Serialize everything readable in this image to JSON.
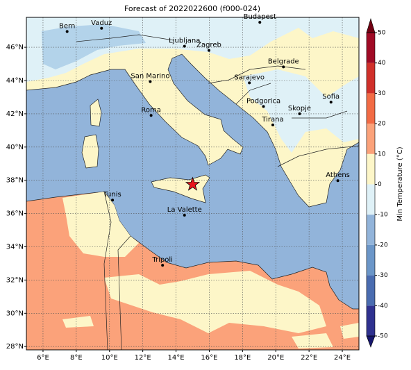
{
  "chart_data": {
    "type": "map",
    "title": "Forecast of 2022022600 (f000-024)",
    "xlim": [
      5,
      25
    ],
    "ylim": [
      27.8,
      47.8
    ],
    "xticks": [
      {
        "value": 6,
        "label": "6°E"
      },
      {
        "value": 8,
        "label": "8°E"
      },
      {
        "value": 10,
        "label": "10°E"
      },
      {
        "value": 12,
        "label": "12°E"
      },
      {
        "value": 14,
        "label": "14°E"
      },
      {
        "value": 16,
        "label": "16°E"
      },
      {
        "value": 18,
        "label": "18°E"
      },
      {
        "value": 20,
        "label": "20°E"
      },
      {
        "value": 22,
        "label": "22°E"
      },
      {
        "value": 24,
        "label": "24°E"
      }
    ],
    "yticks": [
      {
        "value": 28,
        "label": "28°N"
      },
      {
        "value": 30,
        "label": "30°N"
      },
      {
        "value": 32,
        "label": "32°N"
      },
      {
        "value": 34,
        "label": "34°N"
      },
      {
        "value": 36,
        "label": "36°N"
      },
      {
        "value": 38,
        "label": "38°N"
      },
      {
        "value": 40,
        "label": "40°N"
      },
      {
        "value": 42,
        "label": "42°N"
      },
      {
        "value": 44,
        "label": "44°N"
      },
      {
        "value": 46,
        "label": "46°N"
      }
    ],
    "grid": true,
    "cities": [
      {
        "name": "Bern",
        "lon": 7.45,
        "lat": 46.95
      },
      {
        "name": "Vaduz",
        "lon": 9.52,
        "lat": 47.14
      },
      {
        "name": "Budapest",
        "lon": 19.04,
        "lat": 47.5
      },
      {
        "name": "Ljubljana",
        "lon": 14.51,
        "lat": 46.06
      },
      {
        "name": "Zagreb",
        "lon": 15.98,
        "lat": 45.81
      },
      {
        "name": "Belgrade",
        "lon": 20.46,
        "lat": 44.82
      },
      {
        "name": "San Marino",
        "lon": 12.45,
        "lat": 43.94
      },
      {
        "name": "Sarajevo",
        "lon": 18.41,
        "lat": 43.86
      },
      {
        "name": "Sofia",
        "lon": 23.32,
        "lat": 42.7
      },
      {
        "name": "Podgorica",
        "lon": 19.26,
        "lat": 42.44
      },
      {
        "name": "Skopje",
        "lon": 21.43,
        "lat": 42.0
      },
      {
        "name": "Roma",
        "lon": 12.5,
        "lat": 41.9
      },
      {
        "name": "Tirana",
        "lon": 19.82,
        "lat": 41.33
      },
      {
        "name": "Athens",
        "lon": 23.73,
        "lat": 37.98
      },
      {
        "name": "Tunis",
        "lon": 10.18,
        "lat": 36.81
      },
      {
        "name": "La Valette",
        "lon": 14.51,
        "lat": 35.9
      },
      {
        "name": "Tripoli",
        "lon": 13.19,
        "lat": 32.89
      }
    ],
    "marker": {
      "lon": 15.0,
      "lat": 37.75,
      "color": "#e8141c"
    },
    "colorbar": {
      "label": "Min Temperature (°C)",
      "lim": [
        -50,
        50
      ],
      "ticks": [
        -50,
        -40,
        -30,
        -20,
        -10,
        0,
        10,
        20,
        30,
        40,
        50
      ],
      "colors": [
        "#2f318f",
        "#4a6cb0",
        "#6b96c8",
        "#92b4da",
        "#dff1f7",
        "#fdf6c8",
        "#fba27a",
        "#f26b45",
        "#d0302a",
        "#a00a25"
      ],
      "extend_colors": [
        "#16166e",
        "#720012"
      ]
    }
  }
}
